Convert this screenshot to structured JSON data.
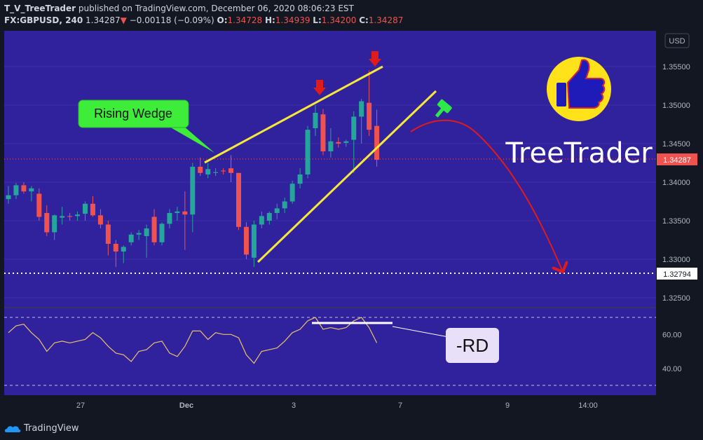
{
  "header": {
    "author": "T_V_TreeTrader",
    "published": "published on TradingView.com, December 06, 2020 08:06:23 EST",
    "symbol": "FX:GBPUSD, 240",
    "price": "1.34287",
    "change_arrow": "▼",
    "change": "−0.00118 (−0.09%)",
    "o_label": "O:",
    "o_value": "1.34728",
    "h_label": "H:",
    "h_value": "1.34939",
    "l_label": "L:",
    "l_value": "1.34200",
    "c_label": "C:",
    "c_value": "1.34287"
  },
  "footer": {
    "brand": "TradingView"
  },
  "colors": {
    "pane_bg": "#30219d",
    "up": "#26a69a",
    "down": "#ef5350",
    "wedge": "#f5e839",
    "arrow": "#e01b1b",
    "hammer": "#2ee84a",
    "rsi": "#e8c36a"
  },
  "chart_data": [
    {
      "type": "candlestick",
      "currency": "USD",
      "y_ticks": [
        "1.35500",
        "1.35000",
        "1.34500",
        "1.34000",
        "1.33500",
        "1.33000",
        "1.32500"
      ],
      "ylim": [
        1.3215,
        1.3585
      ],
      "x_ticks": [
        "27",
        "Dec",
        "3",
        "7",
        "9",
        "14:00"
      ],
      "current_price_label": "1.34287",
      "target_label": "1.32794",
      "annotations": [
        "Rising Wedge",
        "TreeTrader",
        "-RD"
      ],
      "candles": [
        {
          "o": 1.3378,
          "h": 1.3395,
          "l": 1.3372,
          "c": 1.3383
        },
        {
          "o": 1.3383,
          "h": 1.3399,
          "l": 1.3378,
          "c": 1.3396
        },
        {
          "o": 1.3396,
          "h": 1.34,
          "l": 1.3385,
          "c": 1.3388
        },
        {
          "o": 1.3388,
          "h": 1.3395,
          "l": 1.3375,
          "c": 1.3392
        },
        {
          "o": 1.3385,
          "h": 1.3392,
          "l": 1.335,
          "c": 1.3355
        },
        {
          "o": 1.336,
          "h": 1.337,
          "l": 1.333,
          "c": 1.3335
        },
        {
          "o": 1.3335,
          "h": 1.3358,
          "l": 1.3325,
          "c": 1.3357
        },
        {
          "o": 1.3354,
          "h": 1.3368,
          "l": 1.3345,
          "c": 1.3356
        },
        {
          "o": 1.3356,
          "h": 1.336,
          "l": 1.335,
          "c": 1.3355
        },
        {
          "o": 1.3356,
          "h": 1.3362,
          "l": 1.335,
          "c": 1.3358
        },
        {
          "o": 1.3359,
          "h": 1.3375,
          "l": 1.335,
          "c": 1.3372
        },
        {
          "o": 1.3372,
          "h": 1.3382,
          "l": 1.3355,
          "c": 1.3357
        },
        {
          "o": 1.3357,
          "h": 1.3365,
          "l": 1.334,
          "c": 1.3345
        },
        {
          "o": 1.3345,
          "h": 1.335,
          "l": 1.3305,
          "c": 1.332
        },
        {
          "o": 1.332,
          "h": 1.3325,
          "l": 1.329,
          "c": 1.331
        },
        {
          "o": 1.331,
          "h": 1.3318,
          "l": 1.3295,
          "c": 1.3316
        },
        {
          "o": 1.3322,
          "h": 1.3335,
          "l": 1.3318,
          "c": 1.3332
        },
        {
          "o": 1.3332,
          "h": 1.3338,
          "l": 1.3325,
          "c": 1.3334
        },
        {
          "o": 1.333,
          "h": 1.3345,
          "l": 1.3302,
          "c": 1.334
        },
        {
          "o": 1.3355,
          "h": 1.3365,
          "l": 1.3318,
          "c": 1.3322
        },
        {
          "o": 1.3322,
          "h": 1.3348,
          "l": 1.3318,
          "c": 1.3346
        },
        {
          "o": 1.3346,
          "h": 1.3365,
          "l": 1.334,
          "c": 1.336
        },
        {
          "o": 1.336,
          "h": 1.3368,
          "l": 1.335,
          "c": 1.3362
        },
        {
          "o": 1.3362,
          "h": 1.3388,
          "l": 1.3312,
          "c": 1.3358
        },
        {
          "o": 1.3358,
          "h": 1.3425,
          "l": 1.3335,
          "c": 1.342
        },
        {
          "o": 1.342,
          "h": 1.3432,
          "l": 1.3408,
          "c": 1.3412
        },
        {
          "o": 1.341,
          "h": 1.3425,
          "l": 1.3405,
          "c": 1.3417
        },
        {
          "o": 1.3412,
          "h": 1.3418,
          "l": 1.3408,
          "c": 1.3413
        },
        {
          "o": 1.3415,
          "h": 1.3418,
          "l": 1.341,
          "c": 1.3414
        },
        {
          "o": 1.3418,
          "h": 1.3435,
          "l": 1.34,
          "c": 1.3412
        },
        {
          "o": 1.3412,
          "h": 1.3412,
          "l": 1.3338,
          "c": 1.3342
        },
        {
          "o": 1.3342,
          "h": 1.3348,
          "l": 1.33,
          "c": 1.3306
        },
        {
          "o": 1.3302,
          "h": 1.335,
          "l": 1.329,
          "c": 1.3345
        },
        {
          "o": 1.3345,
          "h": 1.3362,
          "l": 1.334,
          "c": 1.3356
        },
        {
          "o": 1.335,
          "h": 1.3362,
          "l": 1.3345,
          "c": 1.336
        },
        {
          "o": 1.336,
          "h": 1.3372,
          "l": 1.3352,
          "c": 1.3366
        },
        {
          "o": 1.3366,
          "h": 1.338,
          "l": 1.336,
          "c": 1.3375
        },
        {
          "o": 1.3375,
          "h": 1.3402,
          "l": 1.3372,
          "c": 1.3398
        },
        {
          "o": 1.3398,
          "h": 1.3418,
          "l": 1.3392,
          "c": 1.341
        },
        {
          "o": 1.341,
          "h": 1.3473,
          "l": 1.3405,
          "c": 1.3468
        },
        {
          "o": 1.347,
          "h": 1.35,
          "l": 1.346,
          "c": 1.349
        },
        {
          "o": 1.3488,
          "h": 1.3495,
          "l": 1.3435,
          "c": 1.344
        },
        {
          "o": 1.344,
          "h": 1.347,
          "l": 1.3432,
          "c": 1.3453
        },
        {
          "o": 1.3452,
          "h": 1.3458,
          "l": 1.3445,
          "c": 1.345
        },
        {
          "o": 1.3451,
          "h": 1.3455,
          "l": 1.3446,
          "c": 1.3453
        },
        {
          "o": 1.3455,
          "h": 1.3492,
          "l": 1.3412,
          "c": 1.3485
        },
        {
          "o": 1.3485,
          "h": 1.3508,
          "l": 1.345,
          "c": 1.3505
        },
        {
          "o": 1.3503,
          "h": 1.3545,
          "l": 1.346,
          "c": 1.3468
        },
        {
          "o": 1.3473,
          "h": 1.3494,
          "l": 1.342,
          "c": 1.3429
        }
      ]
    },
    {
      "type": "line",
      "name": "RSI",
      "y_ticks": [
        "60.00",
        "40.00"
      ],
      "ylim": [
        28,
        74
      ],
      "levels": [
        70,
        30
      ],
      "values": [
        61,
        65,
        66,
        61,
        57,
        50,
        55,
        56,
        55,
        56,
        57,
        61,
        58,
        53,
        49,
        48,
        44,
        50,
        51,
        55,
        56,
        49,
        47,
        53,
        62,
        62,
        57,
        61,
        60,
        60,
        58,
        48,
        43,
        50,
        51,
        52,
        56,
        61,
        63,
        68,
        70,
        63,
        64,
        63,
        64,
        68,
        70,
        64,
        55
      ]
    }
  ]
}
